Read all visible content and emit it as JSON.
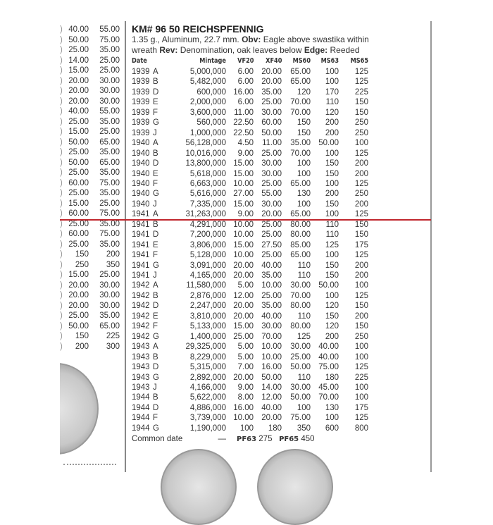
{
  "left_column": [
    [
      "40.00",
      "55.00"
    ],
    [
      "50.00",
      "75.00"
    ],
    [
      "25.00",
      "35.00"
    ],
    [
      "14.00",
      "25.00"
    ],
    [
      "15.00",
      "25.00"
    ],
    [
      "20.00",
      "30.00"
    ],
    [
      "20.00",
      "30.00"
    ],
    [
      "20.00",
      "30.00"
    ],
    [
      "40.00",
      "55.00"
    ],
    [
      "25.00",
      "35.00"
    ],
    [
      "15.00",
      "25.00"
    ],
    [
      "50.00",
      "65.00"
    ],
    [
      "25.00",
      "35.00"
    ],
    [
      "50.00",
      "65.00"
    ],
    [
      "25.00",
      "35.00"
    ],
    [
      "60.00",
      "75.00"
    ],
    [
      "25.00",
      "35.00"
    ],
    [
      "15.00",
      "25.00"
    ],
    [
      "60.00",
      "75.00"
    ],
    [
      "25.00",
      "35.00"
    ],
    [
      "60.00",
      "75.00"
    ],
    [
      "25.00",
      "35.00"
    ],
    [
      "150",
      "200"
    ],
    [
      "250",
      "350"
    ],
    [
      "15.00",
      "25.00"
    ],
    [
      "20.00",
      "30.00"
    ],
    [
      "20.00",
      "30.00"
    ],
    [
      "20.00",
      "30.00"
    ],
    [
      "25.00",
      "35.00"
    ],
    [
      "50.00",
      "65.00"
    ],
    [
      "150",
      "225"
    ],
    [
      "200",
      "300"
    ]
  ],
  "entry": {
    "title": "KM# 96  50 REICHSPFENNIG",
    "desc1_a": "1.35 g., Aluminum, 22.7 mm.  ",
    "obv_label": "Obv:",
    "desc1_b": " Eagle above swastika within",
    "desc2_a": "wreath  ",
    "rev_label": "Rev:",
    "desc2_b": " Denomination, oak leaves below ",
    "edge_label": "Edge:",
    "desc2_c": " Reeded",
    "headers": [
      "Date",
      "Mintage",
      "VF20",
      "XF40",
      "MS60",
      "MS63",
      "MS65"
    ],
    "rows": [
      [
        "1939",
        "A",
        "5,000,000",
        "6.00",
        "20.00",
        "65.00",
        "100",
        "125"
      ],
      [
        "1939",
        "B",
        "5,482,000",
        "6.00",
        "20.00",
        "65.00",
        "100",
        "125"
      ],
      [
        "1939",
        "D",
        "600,000",
        "16.00",
        "35.00",
        "120",
        "170",
        "225"
      ],
      [
        "1939",
        "E",
        "2,000,000",
        "6.00",
        "25.00",
        "70.00",
        "110",
        "150"
      ],
      [
        "1939",
        "F",
        "3,600,000",
        "11.00",
        "30.00",
        "70.00",
        "120",
        "150"
      ],
      [
        "1939",
        "G",
        "560,000",
        "22.50",
        "60.00",
        "150",
        "200",
        "250"
      ],
      [
        "1939",
        "J",
        "1,000,000",
        "22.50",
        "50.00",
        "150",
        "200",
        "250"
      ],
      [
        "1940",
        "A",
        "56,128,000",
        "4.50",
        "11.00",
        "35.00",
        "50.00",
        "100"
      ],
      [
        "1940",
        "B",
        "10,016,000",
        "9.00",
        "25.00",
        "70.00",
        "100",
        "125"
      ],
      [
        "1940",
        "D",
        "13,800,000",
        "15.00",
        "30.00",
        "100",
        "150",
        "200"
      ],
      [
        "1940",
        "E",
        "5,618,000",
        "15.00",
        "30.00",
        "100",
        "150",
        "200"
      ],
      [
        "1940",
        "F",
        "6,663,000",
        "10.00",
        "25.00",
        "65.00",
        "100",
        "125"
      ],
      [
        "1940",
        "G",
        "5,616,000",
        "27.00",
        "55.00",
        "130",
        "200",
        "250"
      ],
      [
        "1940",
        "J",
        "7,335,000",
        "15.00",
        "30.00",
        "100",
        "150",
        "200"
      ],
      [
        "1941",
        "A",
        "31,263,000",
        "9.00",
        "20.00",
        "65.00",
        "100",
        "125"
      ],
      [
        "1941",
        "B",
        "4,291,000",
        "10.00",
        "25.00",
        "80.00",
        "110",
        "150"
      ],
      [
        "1941",
        "D",
        "7,200,000",
        "10.00",
        "25.00",
        "80.00",
        "110",
        "150"
      ],
      [
        "1941",
        "E",
        "3,806,000",
        "15.00",
        "27.50",
        "85.00",
        "125",
        "175"
      ],
      [
        "1941",
        "F",
        "5,128,000",
        "10.00",
        "25.00",
        "65.00",
        "100",
        "125"
      ],
      [
        "1941",
        "G",
        "3,091,000",
        "20.00",
        "40.00",
        "110",
        "150",
        "200"
      ],
      [
        "1941",
        "J",
        "4,165,000",
        "20.00",
        "35.00",
        "110",
        "150",
        "200"
      ],
      [
        "1942",
        "A",
        "11,580,000",
        "5.00",
        "10.00",
        "30.00",
        "50.00",
        "100"
      ],
      [
        "1942",
        "B",
        "2,876,000",
        "12.00",
        "25.00",
        "70.00",
        "100",
        "125"
      ],
      [
        "1942",
        "D",
        "2,247,000",
        "20.00",
        "35.00",
        "80.00",
        "120",
        "150"
      ],
      [
        "1942",
        "E",
        "3,810,000",
        "20.00",
        "40.00",
        "110",
        "150",
        "200"
      ],
      [
        "1942",
        "F",
        "5,133,000",
        "15.00",
        "30.00",
        "80.00",
        "120",
        "150"
      ],
      [
        "1942",
        "G",
        "1,400,000",
        "25.00",
        "70.00",
        "125",
        "200",
        "250"
      ],
      [
        "1943",
        "A",
        "29,325,000",
        "5.00",
        "10.00",
        "30.00",
        "40.00",
        "100"
      ],
      [
        "1943",
        "B",
        "8,229,000",
        "5.00",
        "10.00",
        "25.00",
        "40.00",
        "100"
      ],
      [
        "1943",
        "D",
        "5,315,000",
        "7.00",
        "16.00",
        "50.00",
        "75.00",
        "125"
      ],
      [
        "1943",
        "G",
        "2,892,000",
        "20.00",
        "50.00",
        "110",
        "180",
        "225"
      ],
      [
        "1943",
        "J",
        "4,166,000",
        "9.00",
        "14.00",
        "30.00",
        "45.00",
        "100"
      ],
      [
        "1944",
        "B",
        "5,622,000",
        "8.00",
        "12.00",
        "50.00",
        "70.00",
        "100"
      ],
      [
        "1944",
        "D",
        "4,886,000",
        "16.00",
        "40.00",
        "100",
        "130",
        "175"
      ],
      [
        "1944",
        "F",
        "3,739,000",
        "10.00",
        "20.00",
        "75.00",
        "100",
        "125"
      ],
      [
        "1944",
        "G",
        "1,190,000",
        "100",
        "180",
        "350",
        "600",
        "800"
      ]
    ],
    "common": {
      "label": "Common date",
      "mintage": "—",
      "pf63_label": "PF63",
      "pf63": "275",
      "pf65_label": "PF65",
      "pf65": "450"
    }
  },
  "colors": {
    "marker_line": "#c0272d"
  }
}
